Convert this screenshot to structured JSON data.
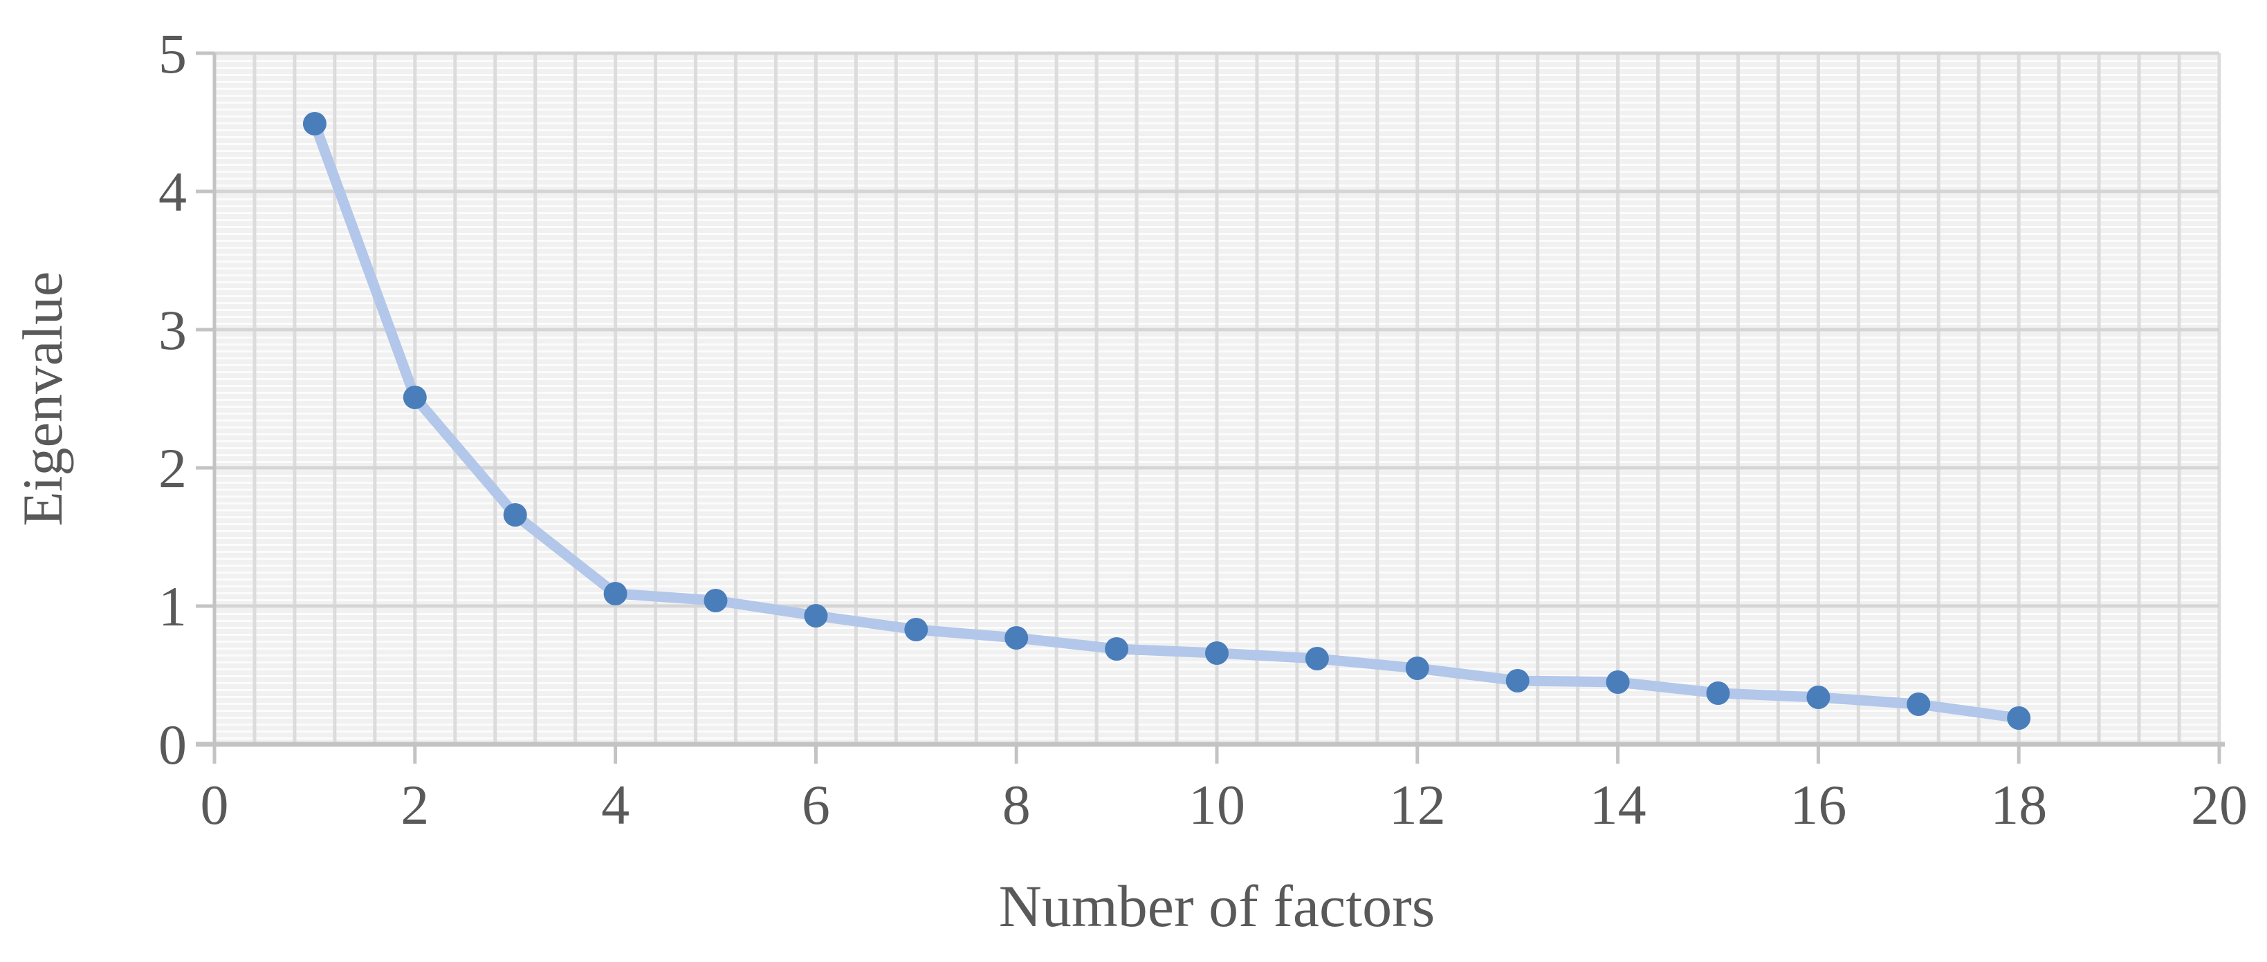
{
  "chart_data": {
    "type": "line",
    "title": "",
    "xlabel": "Number of factors",
    "ylabel": "Eigenvalue",
    "x": [
      1,
      2,
      3,
      4,
      5,
      6,
      7,
      8,
      9,
      10,
      11,
      12,
      13,
      14,
      15,
      16,
      17,
      18
    ],
    "y": [
      4.49,
      2.51,
      1.66,
      1.09,
      1.04,
      0.93,
      0.83,
      0.77,
      0.69,
      0.66,
      0.62,
      0.55,
      0.46,
      0.45,
      0.37,
      0.34,
      0.29,
      0.19
    ],
    "xlim": [
      0,
      20
    ],
    "ylim": [
      0,
      5
    ],
    "x_ticks": [
      0,
      2,
      4,
      6,
      8,
      10,
      12,
      14,
      16,
      18,
      20
    ],
    "y_ticks": [
      0,
      1,
      2,
      3,
      4,
      5
    ],
    "x_minor_gridline_step": 0.4,
    "grid": true,
    "legend_position": "none",
    "marker": "circle"
  },
  "colors": {
    "marker": "#4a7ebb",
    "line": "#b2c7e9",
    "minor_vertical_gridline": "#dcdcdc",
    "major_horizontal_gridline": "#d5d5d5",
    "axis": "#c3c3c3",
    "text": "#595959",
    "plot_stripe_dark": "#f1f1f1",
    "plot_stripe_light": "#fcfcfc"
  }
}
